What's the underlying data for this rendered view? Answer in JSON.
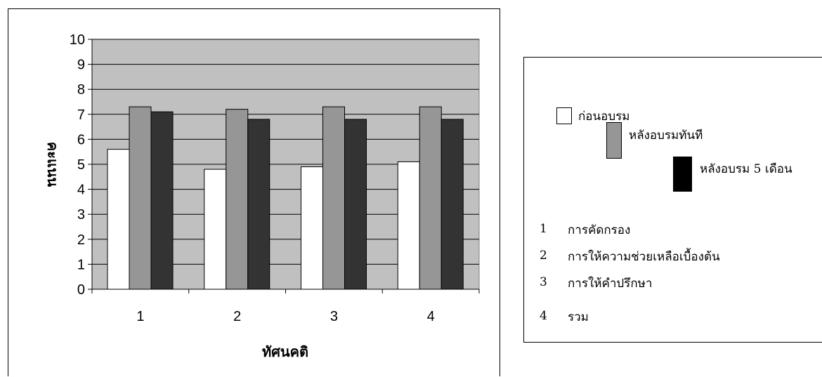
{
  "chart_data": {
    "type": "bar",
    "title": "",
    "xlabel": "ทัศนคติ",
    "ylabel": "คะแนน",
    "ylim": [
      0,
      10
    ],
    "yticks": [
      "0",
      "1",
      "2",
      "3",
      "4",
      "5",
      "6",
      "7",
      "8",
      "9",
      "10"
    ],
    "categories": [
      "1",
      "2",
      "3",
      "4"
    ],
    "grid": true,
    "legend_position": "right",
    "plot_background": "#c0c0c0",
    "series": [
      {
        "name": "ก่อนอบรม",
        "color": "#ffffff",
        "values": [
          5.6,
          4.8,
          4.9,
          5.1
        ]
      },
      {
        "name": "หลังอบรมทันที",
        "color": "#969696",
        "values": [
          7.3,
          7.2,
          7.3,
          7.3
        ]
      },
      {
        "name": "หลังอบรม 5 เดือน",
        "color": "#333333",
        "values": [
          7.1,
          6.8,
          6.8,
          6.8
        ]
      }
    ]
  },
  "legend": {
    "items": [
      "ก่อนอบรม",
      "หลังอบรมทันที",
      "หลังอบรม 5 เดือน"
    ],
    "notes": [
      {
        "num": "1",
        "text": "การคัดกรอง"
      },
      {
        "num": "2",
        "text": "การให้ความช่วยเหลือเบื้องต้น"
      },
      {
        "num": "3",
        "text": "การให้คำปรึกษา"
      },
      {
        "num": "4",
        "text": "รวม"
      }
    ]
  }
}
